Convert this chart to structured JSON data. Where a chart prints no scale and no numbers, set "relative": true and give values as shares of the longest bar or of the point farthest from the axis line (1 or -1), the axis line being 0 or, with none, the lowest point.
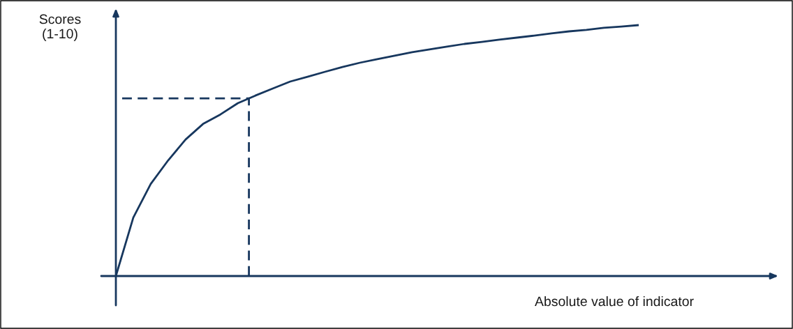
{
  "chart_data": {
    "type": "line",
    "relative": true,
    "ylabel": "Scores\n(1-10)",
    "xlabel": "Absolute value of indicator",
    "categories": [
      null,
      null,
      null,
      null,
      null,
      null,
      null,
      null,
      null,
      null,
      null,
      null,
      null,
      null,
      null,
      null,
      null,
      null,
      null,
      null,
      null,
      null,
      null,
      null,
      null,
      null,
      null,
      null,
      null,
      null,
      null
    ],
    "series": [
      {
        "color": "#17375e",
        "values": [
          0,
          0.233,
          0.367,
          0.461,
          0.544,
          0.606,
          0.644,
          0.689,
          0.719,
          0.747,
          0.775,
          0.794,
          0.814,
          0.833,
          0.85,
          0.864,
          0.878,
          0.892,
          0.903,
          0.914,
          0.925,
          0.933,
          0.942,
          0.95,
          0.958,
          0.967,
          0.975,
          0.981,
          0.989,
          0.994,
          1.0
        ]
      }
    ],
    "ref_lines": [
      {
        "axis": "y",
        "value": 0.708,
        "color": "#17375e",
        "line_style": "dashed"
      }
    ],
    "grid": false,
    "legend": false,
    "marker": "none",
    "line_style": "solid"
  }
}
